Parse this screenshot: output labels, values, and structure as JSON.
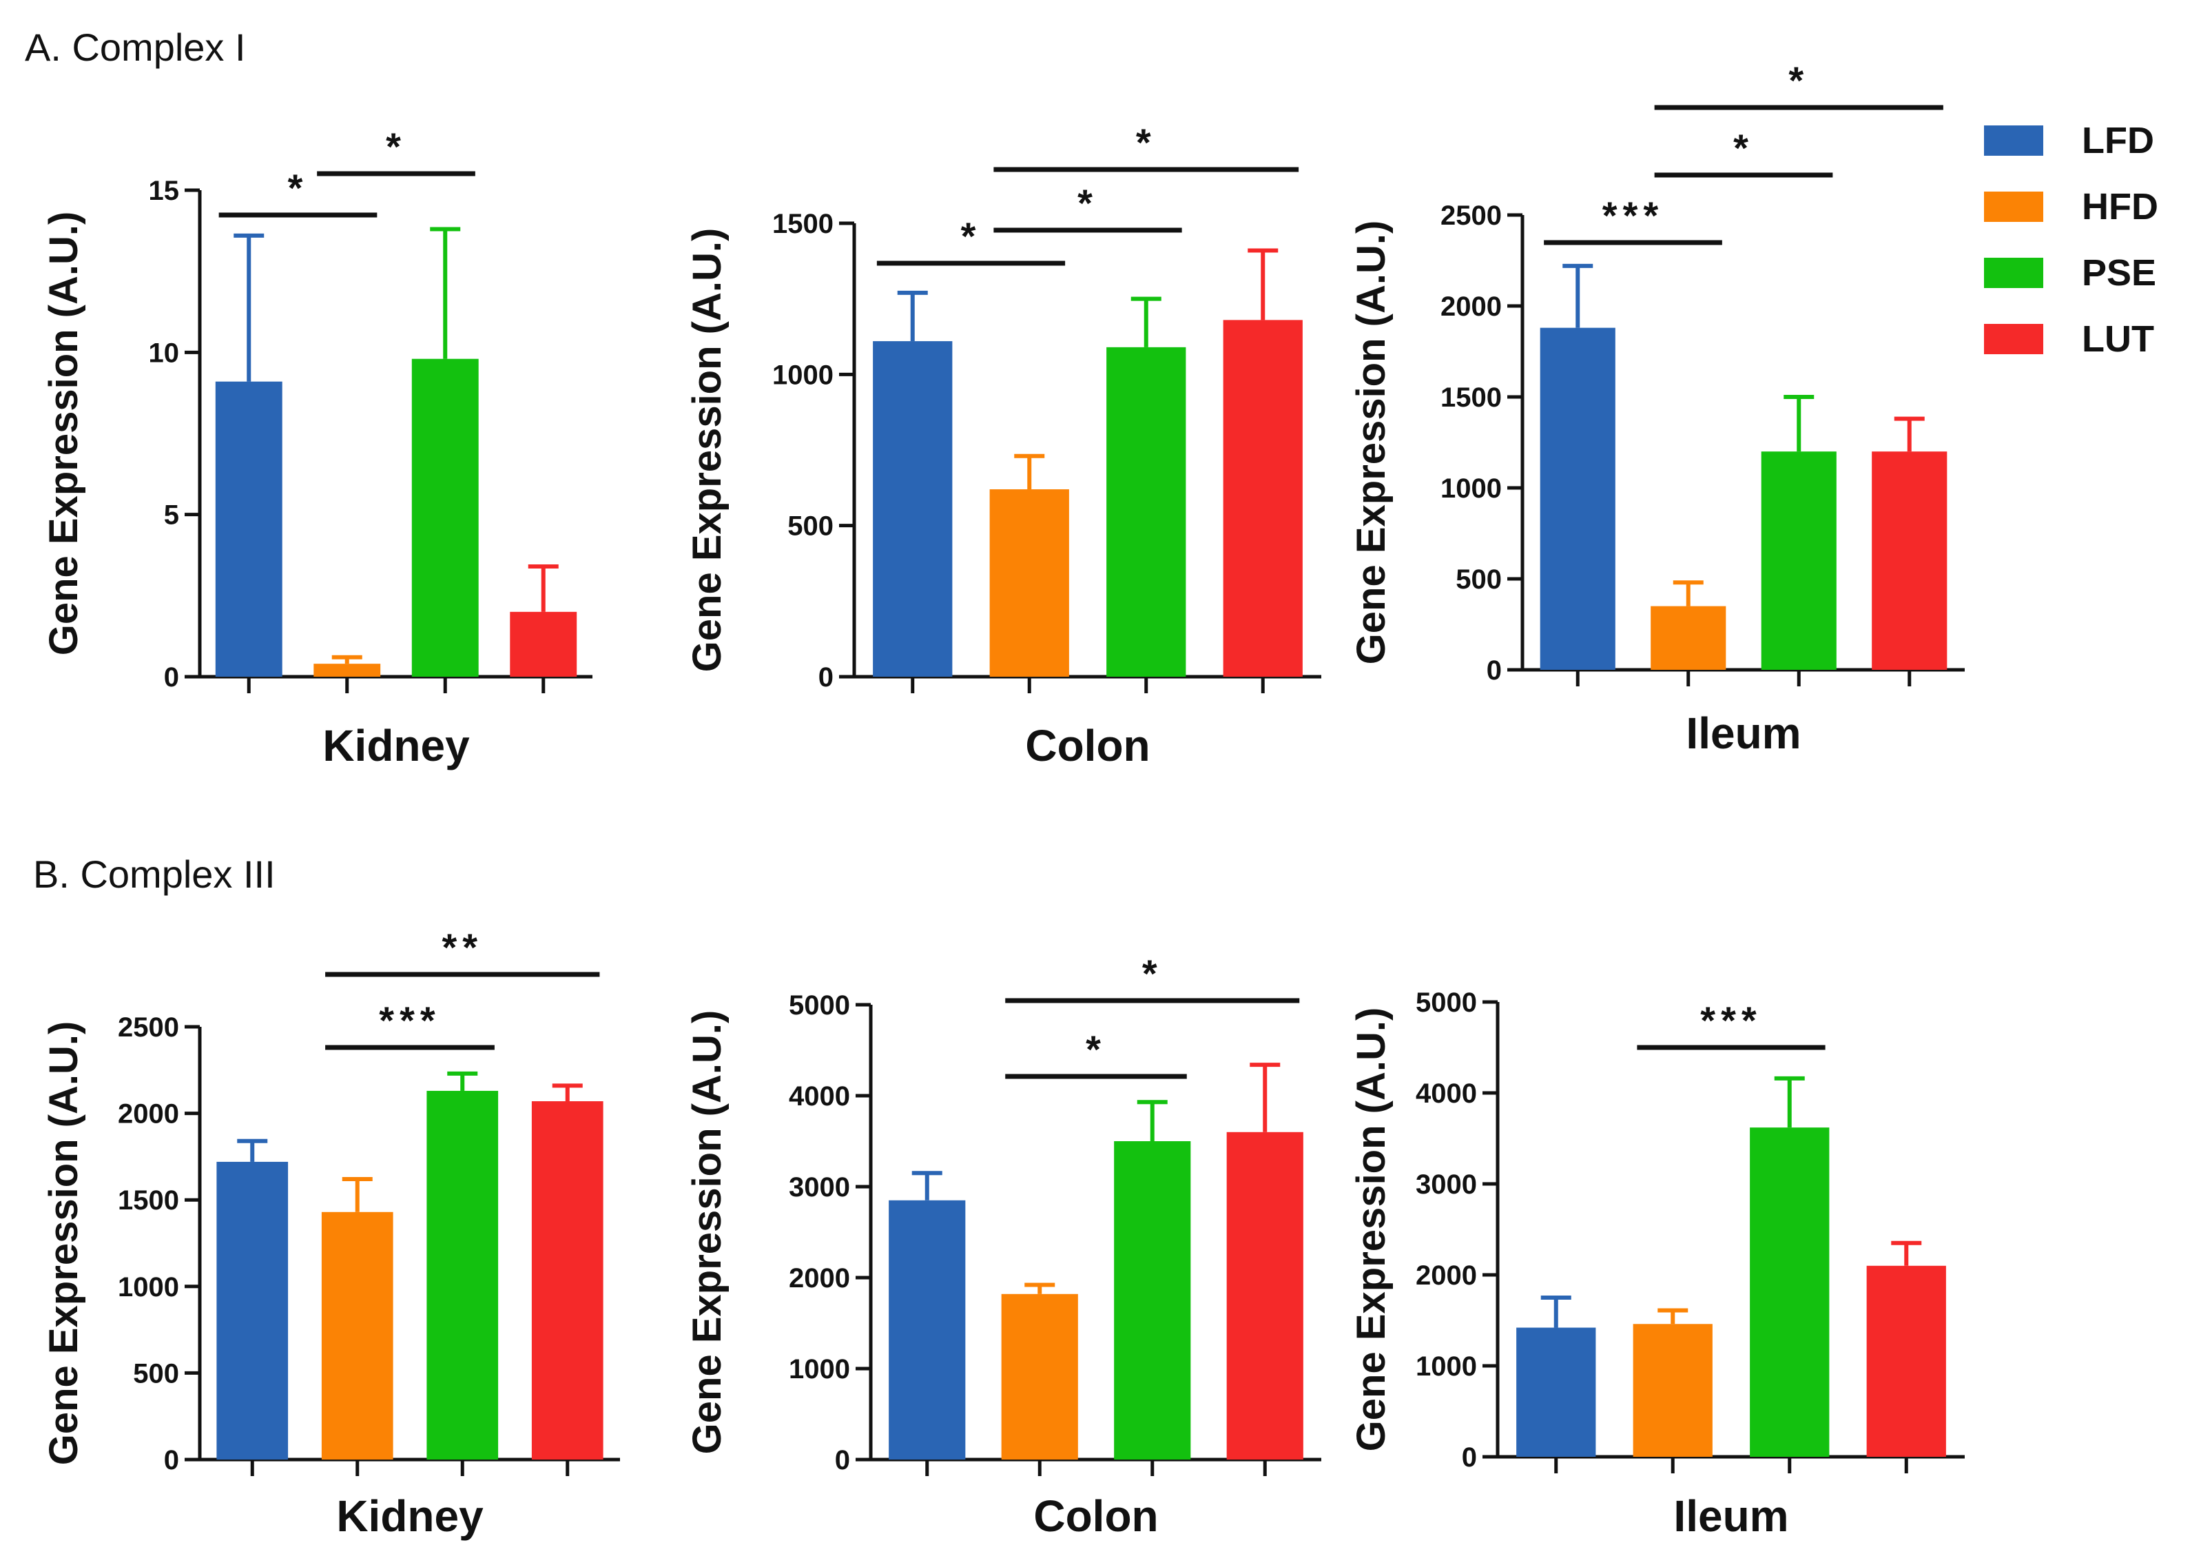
{
  "sections": [
    {
      "title": "A. Complex I"
    },
    {
      "title": "B. Complex III"
    }
  ],
  "legend": [
    {
      "name": "LFD",
      "color": "#2a65b4"
    },
    {
      "name": "HFD",
      "color": "#fb8305"
    },
    {
      "name": "PSE",
      "color": "#13c10f"
    },
    {
      "name": "LUT",
      "color": "#f52929"
    }
  ],
  "chart_data": [
    {
      "type": "bar",
      "section": "A. Complex I",
      "xlabel": "Kidney",
      "ylabel": "Gene Expression (A.U.)",
      "ylim": [
        0,
        15
      ],
      "yticks": [
        0,
        5,
        10,
        15
      ],
      "categories": [
        "LFD",
        "HFD",
        "PSE",
        "LUT"
      ],
      "values": [
        9.1,
        0.4,
        9.8,
        2.0
      ],
      "errors": [
        4.5,
        0.2,
        4.0,
        1.4
      ],
      "significance": [
        {
          "from": 0,
          "to": 1,
          "label": "*"
        },
        {
          "from": 1,
          "to": 2,
          "label": "*"
        }
      ]
    },
    {
      "type": "bar",
      "section": "A. Complex I",
      "xlabel": "Colon",
      "ylabel": "Gene Expression (A.U.)",
      "ylim": [
        0,
        1500
      ],
      "yticks": [
        0,
        500,
        1000,
        1500
      ],
      "categories": [
        "LFD",
        "HFD",
        "PSE",
        "LUT"
      ],
      "values": [
        1110,
        620,
        1090,
        1180
      ],
      "errors": [
        160,
        110,
        160,
        230
      ],
      "significance": [
        {
          "from": 0,
          "to": 1,
          "label": "*"
        },
        {
          "from": 1,
          "to": 2,
          "label": "*"
        },
        {
          "from": 1,
          "to": 3,
          "label": "*"
        }
      ]
    },
    {
      "type": "bar",
      "section": "A. Complex I",
      "xlabel": "Ileum",
      "ylabel": "Gene Expression (A.U.)",
      "ylim": [
        0,
        2500
      ],
      "yticks": [
        0,
        500,
        1000,
        1500,
        2000,
        2500
      ],
      "categories": [
        "LFD",
        "HFD",
        "PSE",
        "LUT"
      ],
      "values": [
        1880,
        350,
        1200,
        1200
      ],
      "errors": [
        340,
        130,
        300,
        180
      ],
      "significance": [
        {
          "from": 0,
          "to": 1,
          "label": "***"
        },
        {
          "from": 1,
          "to": 2,
          "label": "*"
        },
        {
          "from": 1,
          "to": 3,
          "label": "*"
        }
      ]
    },
    {
      "type": "bar",
      "section": "B. Complex III",
      "xlabel": "Kidney",
      "ylabel": "Gene Expression (A.U.)",
      "ylim": [
        0,
        2500
      ],
      "yticks": [
        0,
        500,
        1000,
        1500,
        2000,
        2500
      ],
      "categories": [
        "LFD",
        "HFD",
        "PSE",
        "LUT"
      ],
      "values": [
        1720,
        1430,
        2130,
        2070
      ],
      "errors": [
        120,
        190,
        100,
        90
      ],
      "significance": [
        {
          "from": 1,
          "to": 2,
          "label": "***"
        },
        {
          "from": 1,
          "to": 3,
          "label": "**"
        }
      ]
    },
    {
      "type": "bar",
      "section": "B. Complex III",
      "xlabel": "Colon",
      "ylabel": "Gene Expression (A.U.)",
      "ylim": [
        0,
        5000
      ],
      "yticks": [
        0,
        1000,
        2000,
        3000,
        4000,
        5000
      ],
      "categories": [
        "LFD",
        "HFD",
        "PSE",
        "LUT"
      ],
      "values": [
        2850,
        1820,
        3500,
        3600
      ],
      "errors": [
        300,
        100,
        430,
        740
      ],
      "significance": [
        {
          "from": 1,
          "to": 2,
          "label": "*"
        },
        {
          "from": 1,
          "to": 3,
          "label": "*"
        }
      ]
    },
    {
      "type": "bar",
      "section": "B. Complex III",
      "xlabel": "Ileum",
      "ylabel": "Gene Expression (A.U.)",
      "ylim": [
        0,
        5000
      ],
      "yticks": [
        0,
        1000,
        2000,
        3000,
        4000,
        5000
      ],
      "categories": [
        "LFD",
        "HFD",
        "PSE",
        "LUT"
      ],
      "values": [
        1420,
        1460,
        3620,
        2100
      ],
      "errors": [
        330,
        150,
        540,
        250
      ],
      "significance": [
        {
          "from": 1,
          "to": 2,
          "label": "***"
        }
      ]
    }
  ]
}
